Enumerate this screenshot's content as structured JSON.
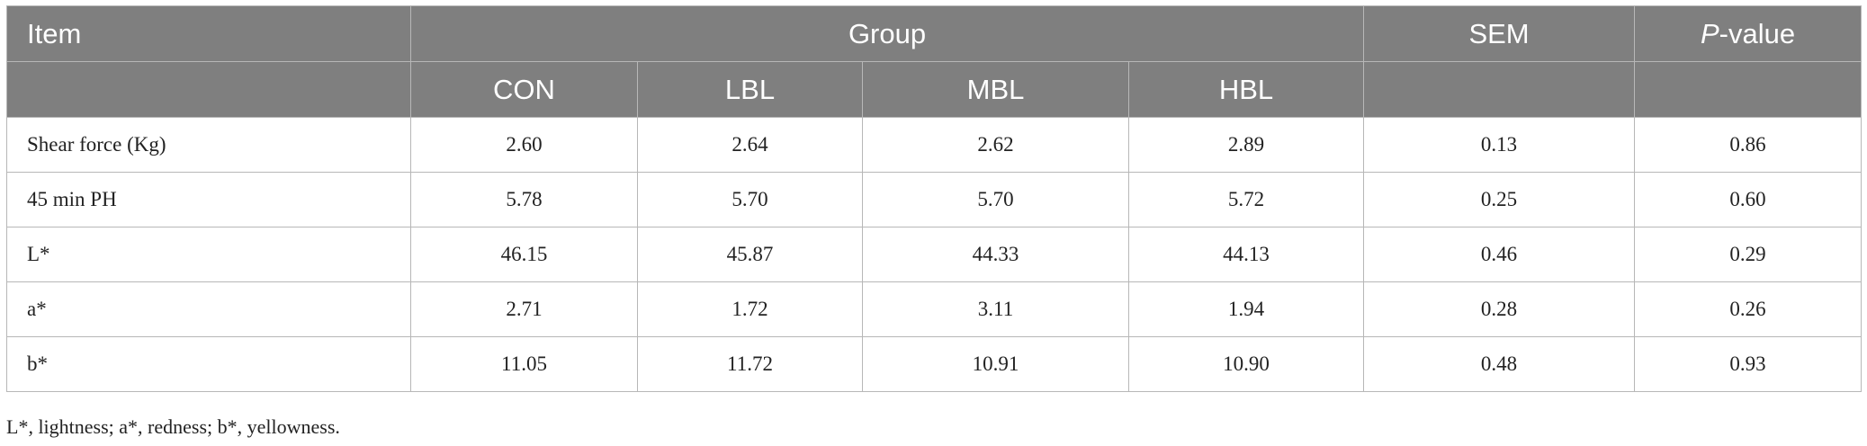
{
  "table": {
    "header": {
      "item": "Item",
      "group": "Group",
      "sem": "SEM",
      "p_value": {
        "italic": "P",
        "text": "-value"
      },
      "groups": [
        "CON",
        "LBL",
        "MBL",
        "HBL"
      ]
    },
    "rows": [
      [
        "Shear force (Kg)",
        "2.60",
        "2.64",
        "2.62",
        "2.89",
        "0.13",
        "0.86"
      ],
      [
        "45 min PH",
        "5.78",
        "5.70",
        "5.70",
        "5.72",
        "0.25",
        "0.60"
      ],
      [
        "L*",
        "46.15",
        "45.87",
        "44.33",
        "44.13",
        "0.46",
        "0.29"
      ],
      [
        "a*",
        "2.71",
        "1.72",
        "3.11",
        "1.94",
        "0.28",
        "0.26"
      ],
      [
        "b*",
        "11.05",
        "11.72",
        "10.91",
        "10.90",
        "0.48",
        "0.93"
      ]
    ]
  },
  "footnote": "L*, lightness; a*, redness; b*, yellowness."
}
